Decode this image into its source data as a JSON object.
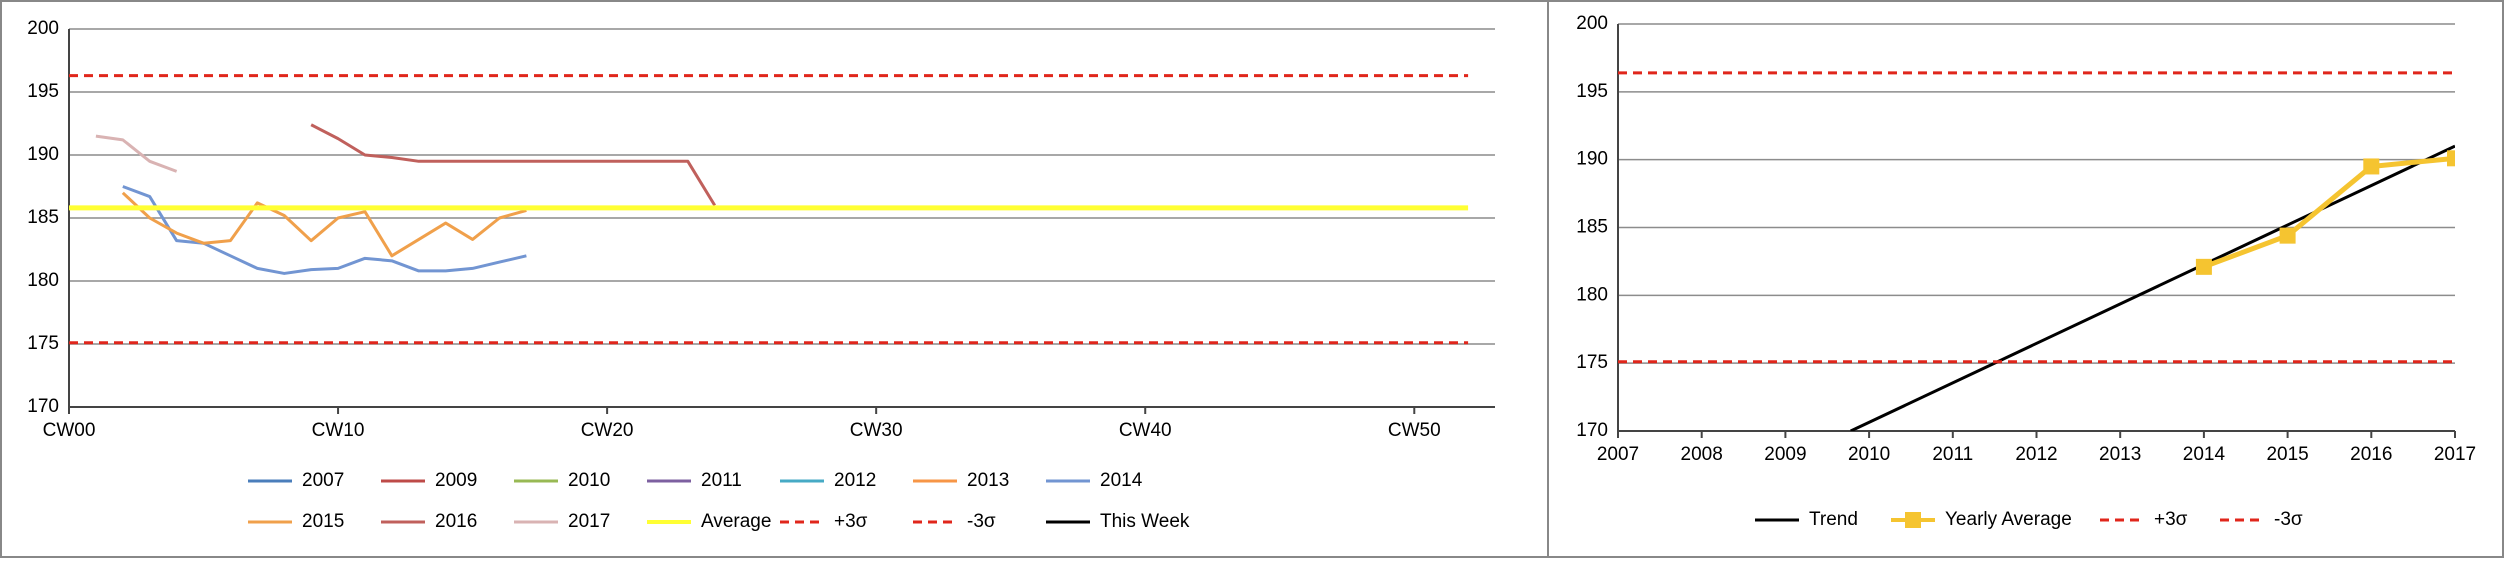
{
  "chart_data": [
    {
      "type": "line",
      "xlim": [
        0,
        53
      ],
      "xticks": [
        {
          "value": 0,
          "label": "CW00"
        },
        {
          "value": 10,
          "label": "CW10"
        },
        {
          "value": 20,
          "label": "CW20"
        },
        {
          "value": 30,
          "label": "CW30"
        },
        {
          "value": 40,
          "label": "CW40"
        },
        {
          "value": 50,
          "label": "CW50"
        }
      ],
      "ylim": [
        170,
        200
      ],
      "yticks": [
        170,
        175,
        180,
        185,
        190,
        195,
        200
      ],
      "grid": true,
      "series": [
        {
          "name": "2007",
          "color": "#4a7ebb",
          "x": [],
          "values": []
        },
        {
          "name": "2009",
          "color": "#be4b48",
          "x": [],
          "values": []
        },
        {
          "name": "2010",
          "color": "#98b954",
          "x": [],
          "values": []
        },
        {
          "name": "2011",
          "color": "#7d60a0",
          "x": [],
          "values": []
        },
        {
          "name": "2012",
          "color": "#46aac5",
          "x": [],
          "values": []
        },
        {
          "name": "2013",
          "color": "#f79646",
          "x": [],
          "values": []
        },
        {
          "name": "2014",
          "color": "#7295d2",
          "x": [
            2,
            3,
            4,
            5,
            6,
            7,
            8,
            9,
            10,
            11,
            12,
            13,
            14,
            15,
            16,
            17
          ],
          "values": [
            187.5,
            186.7,
            183.2,
            183,
            182,
            181,
            180.6,
            180.9,
            181,
            181.8,
            181.6,
            180.8,
            180.8,
            181,
            181.5,
            182
          ]
        },
        {
          "name": "2015",
          "color": "#f0a04b",
          "x": [
            2,
            3,
            4,
            5,
            6,
            7,
            8,
            9,
            10,
            11,
            12,
            13,
            14,
            15,
            16,
            17
          ],
          "values": [
            187,
            185,
            183.8,
            183,
            183.2,
            186.2,
            185.2,
            183.2,
            185,
            185.5,
            182,
            183.3,
            184.6,
            183.3,
            185,
            185.6
          ]
        },
        {
          "name": "2016",
          "color": "#c0605c",
          "x": [
            9,
            10,
            11,
            12,
            13,
            14,
            15,
            16,
            17,
            18,
            19,
            20,
            21,
            22,
            23,
            24
          ],
          "values": [
            192.4,
            191.3,
            190,
            189.8,
            189.5,
            189.5,
            189.5,
            189.5,
            189.5,
            189.5,
            189.5,
            189.5,
            189.5,
            189.5,
            189.5,
            186
          ]
        },
        {
          "name": "2017",
          "color": "#d9b3b3",
          "x": [
            1,
            2,
            3,
            4
          ],
          "values": [
            191.5,
            191.2,
            189.5,
            188.7
          ]
        },
        {
          "name": "Average",
          "color": "#ffff33",
          "width": 5,
          "x": [
            0,
            52
          ],
          "values": [
            185.8,
            185.8
          ]
        },
        {
          "name": "+3σ",
          "color": "#e0261b",
          "dash": true,
          "x": [
            0,
            52
          ],
          "values": [
            196.3,
            196.3
          ]
        },
        {
          "name": "-3σ",
          "color": "#e0261b",
          "dash": true,
          "x": [
            0,
            52
          ],
          "values": [
            175.1,
            175.1
          ]
        },
        {
          "name": "This Week",
          "color": "#000000",
          "x": [],
          "values": []
        }
      ]
    },
    {
      "type": "line",
      "xlim": [
        2007,
        2017
      ],
      "xticks": [
        2007,
        2008,
        2009,
        2010,
        2011,
        2012,
        2013,
        2014,
        2015,
        2016,
        2017
      ],
      "ylim": [
        170,
        200
      ],
      "yticks": [
        170,
        175,
        180,
        185,
        190,
        195,
        200
      ],
      "grid": true,
      "series": [
        {
          "name": "Trend",
          "color": "#000000",
          "x": [
            2009.78,
            2017
          ],
          "values": [
            170,
            191
          ]
        },
        {
          "name": "Yearly Average",
          "color": "#f5c430",
          "width": 5,
          "marker": "square",
          "x": [
            2014,
            2015,
            2016,
            2017
          ],
          "values": [
            182.1,
            184.4,
            189.5,
            190.1
          ]
        },
        {
          "name": "+3σ",
          "color": "#e0261b",
          "dash": true,
          "x": [
            2007,
            2017
          ],
          "values": [
            196.4,
            196.4
          ]
        },
        {
          "name": "-3σ",
          "color": "#e0261b",
          "dash": true,
          "x": [
            2007,
            2017
          ],
          "values": [
            175.1,
            175.1
          ]
        }
      ]
    }
  ]
}
